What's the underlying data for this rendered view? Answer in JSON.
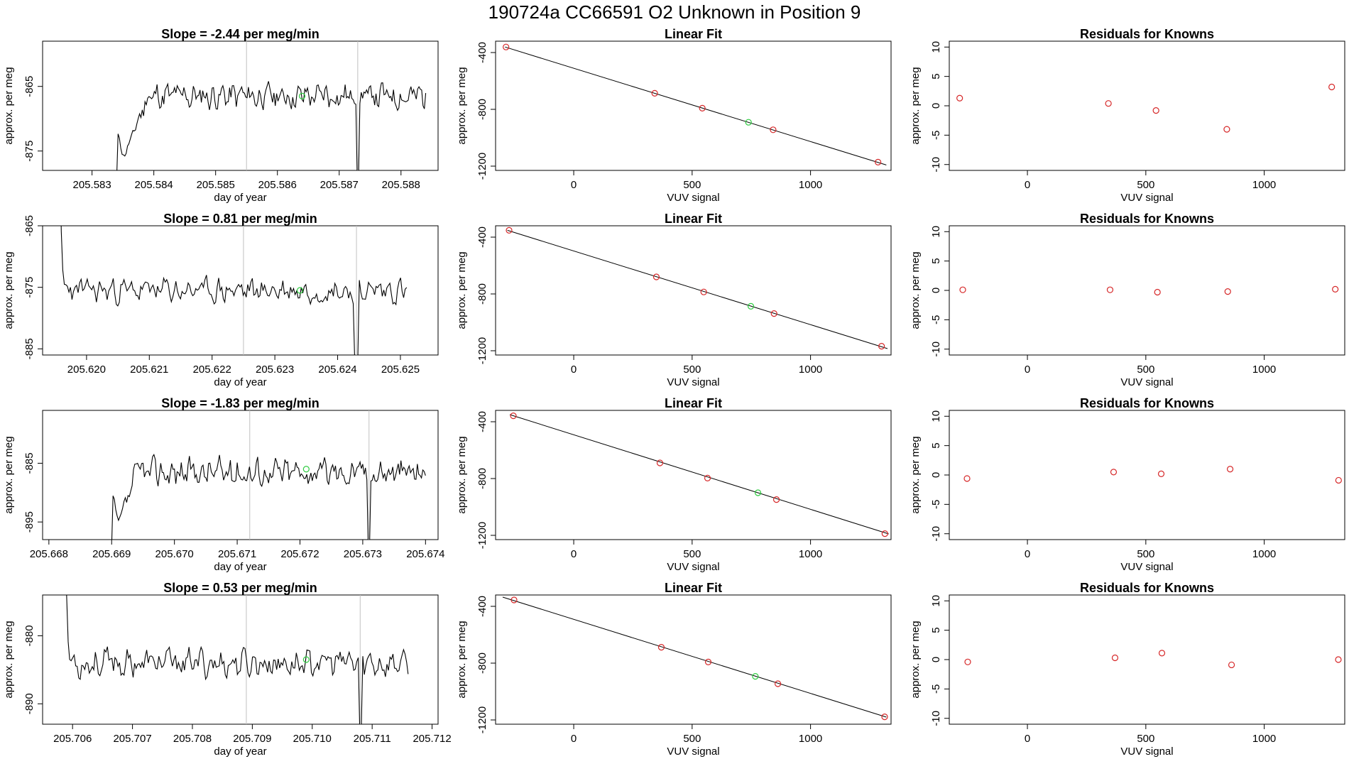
{
  "figure": {
    "title": "190724a      CC66591    O2 Unknown in Position  9",
    "colors": {
      "line": "#000000",
      "known": "#d62728",
      "unknown": "#2ecc40",
      "marker_line": "#c0c0c0",
      "axis": "#000000"
    }
  },
  "chart_data": [
    {
      "row": 1,
      "kind": "time",
      "type": "line",
      "title": "Slope =  -2.44  per meg/min",
      "xlabel": "day of year",
      "ylabel": "approx. per meg",
      "xlim": [
        205.5822,
        205.5886
      ],
      "ylim": [
        -878,
        -858
      ],
      "xticks": [
        "205.583",
        "205.584",
        "205.585",
        "205.586",
        "205.587",
        "205.588"
      ],
      "yticks": [
        "-865",
        "-875"
      ],
      "vlines": [
        205.5855,
        205.5873
      ],
      "unknown_point": {
        "x": 205.5864,
        "y": -866.5
      },
      "trace": {
        "start": 205.5834,
        "end": 205.5884,
        "level": -866.5,
        "amp": 2.6,
        "seed": 11,
        "ramp_end": 205.5839,
        "ramp_from": -879,
        "dip": 205.5873,
        "dip_to": -879
      }
    },
    {
      "row": 1,
      "kind": "fit",
      "type": "scatter",
      "title": "Linear Fit",
      "xlabel": "VUV signal",
      "ylabel": "approx. per meg",
      "xlim": [
        -330,
        1340
      ],
      "ylim": [
        -1230,
        -320
      ],
      "xticks": [
        0,
        500,
        1000
      ],
      "yticks": [
        -400,
        -800,
        -1200
      ],
      "line": {
        "x": [
          -290,
          1320
        ],
        "y": [
          -361,
          -1192
        ]
      },
      "knowns": [
        {
          "x": -286,
          "y": -361
        },
        {
          "x": 342,
          "y": -687
        },
        {
          "x": 543,
          "y": -792
        },
        {
          "x": 842,
          "y": -944
        },
        {
          "x": 1285,
          "y": -1172
        }
      ],
      "unknown": {
        "x": 738,
        "y": -891
      }
    },
    {
      "row": 1,
      "kind": "resid",
      "type": "scatter",
      "title": "Residuals for Knowns",
      "xlabel": "VUV signal",
      "ylabel": "approx. per meg",
      "xlim": [
        -330,
        1340
      ],
      "ylim": [
        -11,
        11
      ],
      "xticks": [
        0,
        500,
        1000
      ],
      "yticks": [
        10,
        5,
        0,
        -5,
        -10
      ],
      "points": [
        {
          "x": -286,
          "y": 1.3
        },
        {
          "x": 342,
          "y": 0.4
        },
        {
          "x": 543,
          "y": -0.8
        },
        {
          "x": 842,
          "y": -4.0
        },
        {
          "x": 1285,
          "y": 3.2
        }
      ]
    },
    {
      "row": 2,
      "kind": "time",
      "type": "line",
      "title": "Slope =  0.81  per meg/min",
      "xlabel": "day of year",
      "ylabel": "approx. per meg",
      "xlim": [
        205.6193,
        205.6256
      ],
      "ylim": [
        -886,
        -865
      ],
      "xticks": [
        "205.620",
        "205.621",
        "205.622",
        "205.623",
        "205.624",
        "205.625"
      ],
      "yticks": [
        "-865",
        "-875",
        "-885"
      ],
      "vlines": [
        205.6225,
        205.6243
      ],
      "unknown_point": {
        "x": 205.6234,
        "y": -875.5
      },
      "trace": {
        "start": 205.6195,
        "end": 205.6251,
        "level": -875.5,
        "amp": 2.5,
        "seed": 23,
        "ramp_end": 205.6195,
        "ramp_from": -875.5,
        "dip": 205.6243,
        "dip_to": -887
      }
    },
    {
      "row": 2,
      "kind": "fit",
      "type": "scatter",
      "title": "Linear Fit",
      "xlabel": "VUV signal",
      "ylabel": "approx. per meg",
      "xlim": [
        -330,
        1340
      ],
      "ylim": [
        -1230,
        -320
      ],
      "xticks": [
        0,
        500,
        1000
      ],
      "yticks": [
        -400,
        -800,
        -1200
      ],
      "line": {
        "x": [
          -280,
          1325
        ],
        "y": [
          -352,
          -1185
        ]
      },
      "knowns": [
        {
          "x": -273,
          "y": -352
        },
        {
          "x": 349,
          "y": -680
        },
        {
          "x": 549,
          "y": -786
        },
        {
          "x": 846,
          "y": -938
        },
        {
          "x": 1300,
          "y": -1168
        }
      ],
      "unknown": {
        "x": 748,
        "y": -887
      }
    },
    {
      "row": 2,
      "kind": "resid",
      "type": "scatter",
      "title": "Residuals for Knowns",
      "xlabel": "VUV signal",
      "ylabel": "approx. per meg",
      "xlim": [
        -330,
        1340
      ],
      "ylim": [
        -11,
        11
      ],
      "xticks": [
        0,
        500,
        1000
      ],
      "yticks": [
        10,
        5,
        0,
        -5,
        -10
      ],
      "points": [
        {
          "x": -273,
          "y": 0.1
        },
        {
          "x": 349,
          "y": 0.1
        },
        {
          "x": 549,
          "y": -0.3
        },
        {
          "x": 846,
          "y": -0.2
        },
        {
          "x": 1300,
          "y": 0.2
        }
      ]
    },
    {
      "row": 3,
      "kind": "time",
      "type": "line",
      "title": "Slope =  -1.83  per meg/min",
      "xlabel": "day of year",
      "ylabel": "approx. per meg",
      "xlim": [
        205.6679,
        205.6742
      ],
      "ylim": [
        -898,
        -876
      ],
      "xticks": [
        "205.668",
        "205.669",
        "205.670",
        "205.671",
        "205.672",
        "205.673",
        "205.674"
      ],
      "yticks": [
        "-885",
        "-895"
      ],
      "vlines": [
        205.6712,
        205.6731
      ],
      "unknown_point": {
        "x": 205.6721,
        "y": -886
      },
      "trace": {
        "start": 205.669,
        "end": 205.674,
        "level": -886.5,
        "amp": 3.0,
        "seed": 37,
        "ramp_end": 205.6694,
        "ramp_from": -899,
        "dip": 205.6731,
        "dip_to": -899
      }
    },
    {
      "row": 3,
      "kind": "fit",
      "type": "scatter",
      "title": "Linear Fit",
      "xlabel": "VUV signal",
      "ylabel": "approx. per meg",
      "xlim": [
        -330,
        1340
      ],
      "ylim": [
        -1230,
        -320
      ],
      "xticks": [
        0,
        500,
        1000
      ],
      "yticks": [
        -400,
        -800,
        -1200
      ],
      "line": {
        "x": [
          -270,
          1330
        ],
        "y": [
          -350,
          -1190
        ]
      },
      "knowns": [
        {
          "x": -255,
          "y": -358
        },
        {
          "x": 364,
          "y": -690
        },
        {
          "x": 565,
          "y": -797
        },
        {
          "x": 856,
          "y": -948
        },
        {
          "x": 1314,
          "y": -1188
        }
      ],
      "unknown": {
        "x": 778,
        "y": -900
      }
    },
    {
      "row": 3,
      "kind": "resid",
      "type": "scatter",
      "title": "Residuals for Knowns",
      "xlabel": "VUV signal",
      "ylabel": "approx. per meg",
      "xlim": [
        -330,
        1340
      ],
      "ylim": [
        -11,
        11
      ],
      "xticks": [
        0,
        500,
        1000
      ],
      "yticks": [
        10,
        5,
        0,
        -5,
        -10
      ],
      "points": [
        {
          "x": -255,
          "y": -0.6
        },
        {
          "x": 364,
          "y": 0.5
        },
        {
          "x": 565,
          "y": 0.2
        },
        {
          "x": 856,
          "y": 1.0
        },
        {
          "x": 1314,
          "y": -0.9
        }
      ]
    },
    {
      "row": 4,
      "kind": "time",
      "type": "line",
      "title": "Slope =  0.53  per meg/min",
      "xlabel": "day of year",
      "ylabel": "approx. per meg",
      "xlim": [
        205.7055,
        205.7121
      ],
      "ylim": [
        -893,
        -874
      ],
      "xticks": [
        "205.706",
        "205.707",
        "205.708",
        "205.709",
        "205.710",
        "205.711",
        "205.712"
      ],
      "yticks": [
        "-880",
        "-890"
      ],
      "vlines": [
        205.7089,
        205.7108
      ],
      "unknown_point": {
        "x": 205.7099,
        "y": -883.5
      },
      "trace": {
        "start": 205.7058,
        "end": 205.7116,
        "level": -884,
        "amp": 2.6,
        "seed": 53,
        "ramp_end": 205.7058,
        "ramp_from": -884,
        "dip": 205.7108,
        "dip_to": -894
      }
    },
    {
      "row": 4,
      "kind": "fit",
      "type": "scatter",
      "title": "Linear Fit",
      "xlabel": "VUV signal",
      "ylabel": "approx. per meg",
      "xlim": [
        -330,
        1340
      ],
      "ylim": [
        -1230,
        -320
      ],
      "xticks": [
        0,
        500,
        1000
      ],
      "yticks": [
        -400,
        -800,
        -1200
      ],
      "line": {
        "x": [
          -300,
          1320
        ],
        "y": [
          -335,
          -1180
        ]
      },
      "knowns": [
        {
          "x": -252,
          "y": -355
        },
        {
          "x": 370,
          "y": -688
        },
        {
          "x": 568,
          "y": -792
        },
        {
          "x": 862,
          "y": -945
        },
        {
          "x": 1313,
          "y": -1178
        }
      ],
      "unknown": {
        "x": 767,
        "y": -893
      }
    },
    {
      "row": 4,
      "kind": "resid",
      "type": "scatter",
      "title": "Residuals for Knowns",
      "xlabel": "VUV signal",
      "ylabel": "approx. per meg",
      "xlim": [
        -330,
        1340
      ],
      "ylim": [
        -11,
        11
      ],
      "xticks": [
        0,
        500,
        1000
      ],
      "yticks": [
        10,
        5,
        0,
        -5,
        -10
      ],
      "points": [
        {
          "x": -252,
          "y": -0.4
        },
        {
          "x": 370,
          "y": 0.3
        },
        {
          "x": 568,
          "y": 1.1
        },
        {
          "x": 862,
          "y": -0.9
        },
        {
          "x": 1313,
          "y": 0.0
        }
      ]
    }
  ]
}
